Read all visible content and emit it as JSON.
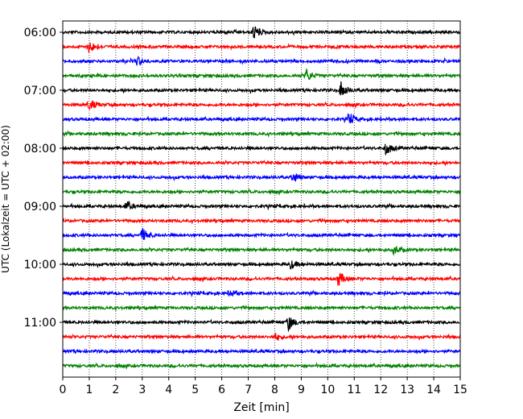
{
  "chart_data": {
    "type": "line",
    "chart_kind": "helicorder",
    "xlabel": "Zeit  [min]",
    "ylabel": "UTC (Lokalzeit = UTC + 02:00)",
    "xlim": [
      0,
      15
    ],
    "x_ticks": [
      "0",
      "1",
      "2",
      "3",
      "4",
      "5",
      "6",
      "7",
      "8",
      "9",
      "10",
      "11",
      "12",
      "13",
      "14",
      "15"
    ],
    "y_tick_labels": [
      "06:00",
      "07:00",
      "08:00",
      "09:00",
      "10:00",
      "11:00"
    ],
    "y_tick_rows": [
      0,
      4,
      8,
      12,
      16,
      20
    ],
    "row_count": 24,
    "colors": [
      "#000000",
      "#ff0000",
      "#0000ff",
      "#008000"
    ],
    "grid": "vertical-dotted",
    "events": [
      {
        "row": 0,
        "x": 7.2,
        "amp": 0.8
      },
      {
        "row": 1,
        "x": 1.0,
        "amp": 0.7
      },
      {
        "row": 2,
        "x": 2.8,
        "amp": 0.55
      },
      {
        "row": 3,
        "x": 9.2,
        "amp": 0.7
      },
      {
        "row": 4,
        "x": 10.5,
        "amp": 0.95
      },
      {
        "row": 5,
        "x": 1.0,
        "amp": 0.65
      },
      {
        "row": 6,
        "x": 10.8,
        "amp": 0.7
      },
      {
        "row": 8,
        "x": 12.2,
        "amp": 0.75
      },
      {
        "row": 10,
        "x": 8.7,
        "amp": 0.6
      },
      {
        "row": 12,
        "x": 2.4,
        "amp": 0.55
      },
      {
        "row": 14,
        "x": 3.0,
        "amp": 0.75
      },
      {
        "row": 15,
        "x": 12.5,
        "amp": 0.5
      },
      {
        "row": 16,
        "x": 8.6,
        "amp": 0.5
      },
      {
        "row": 17,
        "x": 10.4,
        "amp": 0.85
      },
      {
        "row": 18,
        "x": 6.3,
        "amp": 0.4
      },
      {
        "row": 20,
        "x": 8.5,
        "amp": 0.95
      },
      {
        "row": 21,
        "x": 8.0,
        "amp": 0.4
      }
    ]
  }
}
